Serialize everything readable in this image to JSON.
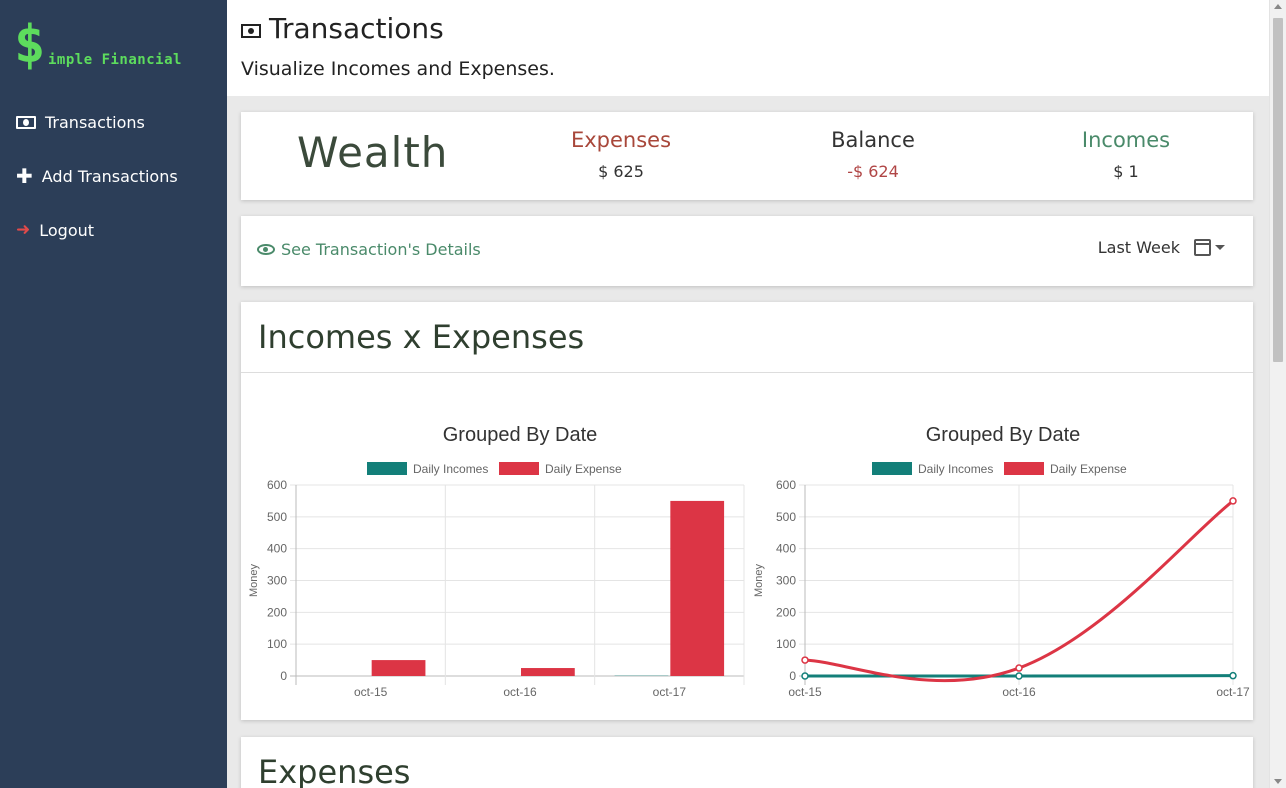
{
  "brand": {
    "dollar": "$",
    "name": "imple Financial"
  },
  "sidebar": {
    "items": [
      {
        "label": "Transactions",
        "icon": "money-bill-icon"
      },
      {
        "label": "Add Transactions",
        "icon": "plus-icon"
      },
      {
        "label": "Logout",
        "icon": "logout-icon"
      }
    ]
  },
  "header": {
    "title": "Transactions",
    "subtitle": "Visualize Incomes and Expenses."
  },
  "summary": {
    "title": "Wealth",
    "expenses": {
      "label": "Expenses",
      "value": "$ 625"
    },
    "balance": {
      "label": "Balance",
      "value": "-$ 624"
    },
    "incomes": {
      "label": "Incomes",
      "value": "$ 1"
    }
  },
  "details": {
    "link": "See Transaction's Details",
    "period": "Last Week"
  },
  "charts_section": {
    "title": "Incomes x Expenses"
  },
  "expenses_section": {
    "title": "Expenses"
  },
  "colors": {
    "income": "#137f79",
    "expense": "#dc3545",
    "sidebar": "#2c3e58",
    "brand": "#5ddc5d"
  },
  "chart_data": [
    {
      "type": "bar",
      "title": "Grouped By Date",
      "categories": [
        "oct-15",
        "oct-16",
        "oct-17"
      ],
      "series": [
        {
          "name": "Daily Incomes",
          "values": [
            0,
            0,
            1
          ]
        },
        {
          "name": "Daily Expense",
          "values": [
            50,
            25,
            550
          ]
        }
      ],
      "ylabel": "Money",
      "ylim": [
        0,
        600
      ],
      "yticks": [
        0,
        100,
        200,
        300,
        400,
        500,
        600
      ],
      "legend": "top",
      "grid": true
    },
    {
      "type": "line",
      "title": "Grouped By Date",
      "categories": [
        "oct-15",
        "oct-16",
        "oct-17"
      ],
      "series": [
        {
          "name": "Daily Incomes",
          "values": [
            0,
            0,
            1
          ]
        },
        {
          "name": "Daily Expense",
          "values": [
            50,
            25,
            550
          ]
        }
      ],
      "ylabel": "Money",
      "ylim": [
        0,
        600
      ],
      "yticks": [
        0,
        100,
        200,
        300,
        400,
        500,
        600
      ],
      "legend": "top",
      "grid": true
    }
  ]
}
